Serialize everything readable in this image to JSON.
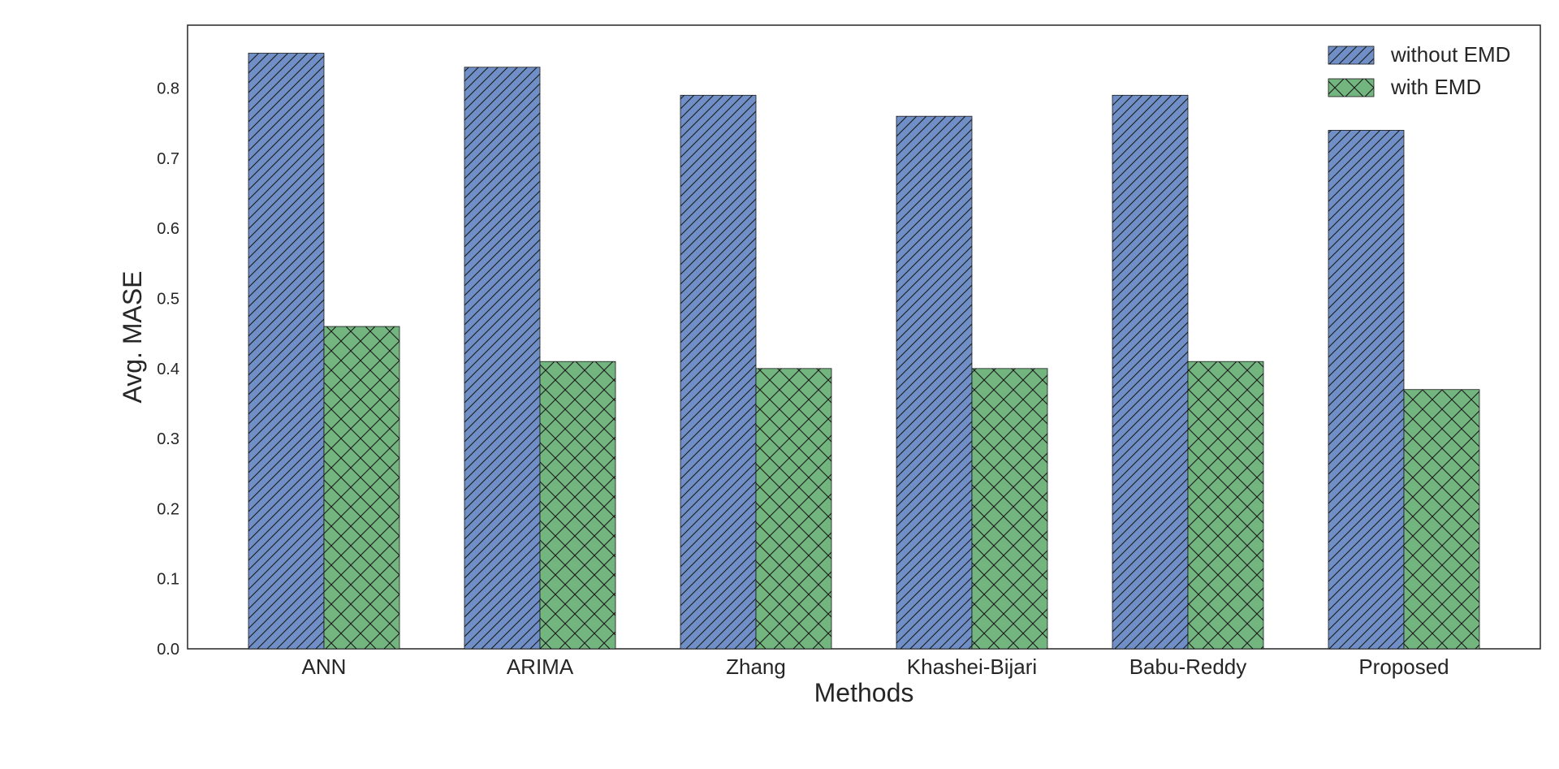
{
  "chart_data": {
    "type": "bar",
    "categories": [
      "ANN",
      "ARIMA",
      "Zhang",
      "Khashei-Bijari",
      "Babu-Reddy",
      "Proposed"
    ],
    "series": [
      {
        "name": "without EMD",
        "values": [
          0.85,
          0.83,
          0.79,
          0.76,
          0.79,
          0.74
        ],
        "color": "#6f8fc6",
        "hatch": "diagonal"
      },
      {
        "name": "with EMD",
        "values": [
          0.46,
          0.41,
          0.4,
          0.4,
          0.41,
          0.37
        ],
        "color": "#72b57f",
        "hatch": "cross"
      }
    ],
    "xlabel": "Methods",
    "ylabel": "Avg. MASE",
    "ylim": [
      0,
      0.89
    ],
    "yticks": [
      "0.0",
      "0.1",
      "0.2",
      "0.3",
      "0.4",
      "0.5",
      "0.6",
      "0.7",
      "0.8"
    ],
    "grid": false,
    "legend_position": "top-right"
  }
}
